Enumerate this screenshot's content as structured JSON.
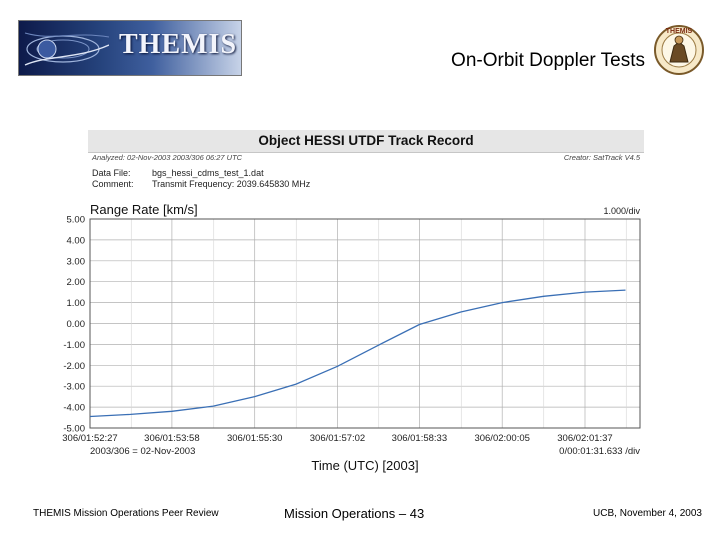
{
  "header": {
    "logo_text": "THEMIS",
    "slide_title": "On-Orbit Doppler Tests",
    "mascot_text": "THEMIS"
  },
  "panel": {
    "title": "Object HESSI UTDF Track Record",
    "analyzed": "Analyzed: 02-Nov-2003 2003/306 06:27 UTC",
    "creator": "Creator: SatTrack V4.5",
    "data_file_label": "Data File:",
    "data_file_value": "bgs_hessi_cdms_test_1.dat",
    "comment_label": "Comment:",
    "comment_value": "Transmit Frequency: 2039.645830 MHz"
  },
  "footer": {
    "left": "THEMIS Mission Operations Peer Review",
    "center": "Mission Operations – 43",
    "right": "UCB, November 4, 2003"
  },
  "chart_data": {
    "type": "line",
    "title": "Range Rate [km/s]",
    "xlabel": "Time (UTC) [2003]",
    "ylabel": "",
    "y_scale_note": "1.000/div",
    "x_scale_note": "0/00:01:31.633 /div",
    "x_date_note": "2003/306 = 02-Nov-2003",
    "x_tick_labels": [
      "306/01:52:27",
      "306/01:53:58",
      "306/01:55:30",
      "306/01:57:02",
      "306/01:58:33",
      "306/02:00:05",
      "306/02:01:37"
    ],
    "y_tick_labels": [
      "5.00",
      "4.00",
      "3.00",
      "2.00",
      "1.00",
      "0.00",
      "-1.00",
      "-2.00",
      "-3.00",
      "-4.00",
      "-5.00"
    ],
    "ylim": [
      -5,
      5
    ],
    "grid": true,
    "colors": {
      "line": "#3a6fb5",
      "grid": "#b0b0b0"
    },
    "series": [
      {
        "x": [
          "306/01:52:27",
          "306/01:53:12",
          "306/01:53:58",
          "306/01:54:44",
          "306/01:55:30",
          "306/01:56:16",
          "306/01:57:02",
          "306/01:57:47",
          "306/01:58:33",
          "306/01:59:19",
          "306/02:00:05",
          "306/02:00:51",
          "306/02:01:37",
          "306/02:02:22"
        ],
        "values": [
          -4.45,
          -4.35,
          -4.2,
          -3.95,
          -3.5,
          -2.9,
          -2.05,
          -1.05,
          -0.05,
          0.55,
          1.0,
          1.3,
          1.5,
          1.6
        ]
      }
    ]
  }
}
